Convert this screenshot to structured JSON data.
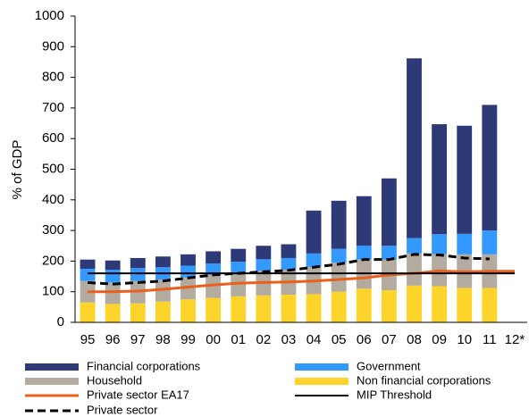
{
  "chart_data": {
    "type": "bar",
    "stacked": true,
    "y_label": "% of GDP",
    "categories": [
      "95",
      "96",
      "97",
      "98",
      "99",
      "00",
      "01",
      "02",
      "03",
      "04",
      "05",
      "06",
      "07",
      "08",
      "09",
      "10",
      "11",
      "12*"
    ],
    "ylim": [
      0,
      1000
    ],
    "yticks": [
      0,
      100,
      200,
      300,
      400,
      500,
      600,
      700,
      800,
      900,
      1000
    ],
    "grid": false,
    "series": [
      {
        "name": "Financial corporations",
        "kind": "bar",
        "color": "#2e3a78",
        "values": [
          30,
          30,
          33,
          35,
          37,
          40,
          42,
          44,
          45,
          140,
          157,
          162,
          220,
          587,
          359,
          353,
          410,
          null
        ]
      },
      {
        "name": "Government",
        "kind": "bar",
        "color": "#3399ff",
        "values": [
          40,
          42,
          42,
          40,
          38,
          37,
          35,
          38,
          38,
          45,
          45,
          45,
          45,
          50,
          65,
          67,
          78,
          null
        ]
      },
      {
        "name": "Household",
        "kind": "bar",
        "color": "#b3aaa0",
        "values": [
          70,
          70,
          73,
          72,
          72,
          75,
          78,
          80,
          82,
          88,
          95,
          95,
          100,
          105,
          105,
          110,
          110,
          null
        ]
      },
      {
        "name": "Non financial corporations",
        "kind": "bar",
        "color": "#ffd42a",
        "values": [
          65,
          60,
          62,
          68,
          75,
          80,
          85,
          88,
          90,
          92,
          100,
          110,
          105,
          120,
          118,
          112,
          112,
          null
        ]
      },
      {
        "name": "Private sector EA17",
        "kind": "line",
        "color": "#e8601c",
        "width": 3,
        "values": [
          100,
          100,
          102,
          108,
          115,
          122,
          128,
          130,
          132,
          135,
          140,
          145,
          155,
          160,
          168,
          165,
          167,
          167
        ]
      },
      {
        "name": "MIP Threshold",
        "kind": "line",
        "color": "#000000",
        "width": 2,
        "values": [
          160,
          160,
          160,
          160,
          160,
          160,
          160,
          160,
          160,
          160,
          160,
          160,
          160,
          160,
          160,
          160,
          160,
          160
        ]
      },
      {
        "name": "Private sector",
        "kind": "line",
        "color": "#000000",
        "width": 3,
        "dashed": true,
        "values": [
          130,
          125,
          130,
          135,
          145,
          155,
          160,
          165,
          170,
          180,
          190,
          205,
          205,
          222,
          220,
          210,
          207,
          null
        ]
      }
    ]
  }
}
